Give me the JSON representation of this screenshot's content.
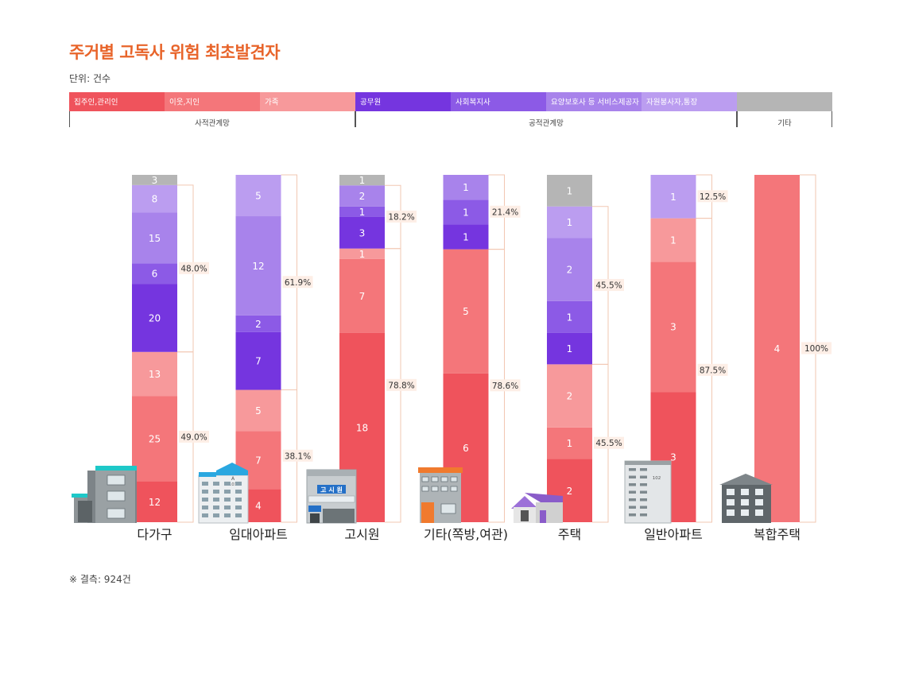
{
  "title": "주거별 고독사 위험 최초발견자",
  "unit": "단위: 건수",
  "footnote": "※ 결측: 924건",
  "legend": {
    "items": [
      {
        "label": "집주인,관리인",
        "color": "#ef535c"
      },
      {
        "label": "이웃,지인",
        "color": "#f4767a"
      },
      {
        "label": "가족",
        "color": "#f7999b"
      },
      {
        "label": "공무원",
        "color": "#7535df"
      },
      {
        "label": "사회복지사",
        "color": "#8c5ae6"
      },
      {
        "label": "요양보호사 등 서비스제공자",
        "color": "#a883eb"
      },
      {
        "label": "자원봉사자,통장",
        "color": "#bb9df0"
      },
      {
        "label": "",
        "color": "#b5b5b5"
      }
    ],
    "groups": [
      {
        "label": "사적관계망",
        "from": 0,
        "to": 3
      },
      {
        "label": "공적관계망",
        "from": 3,
        "to": 7
      },
      {
        "label": "기타",
        "from": 7,
        "to": 8
      }
    ]
  },
  "chart_data": {
    "type": "bar",
    "stacked": "percent",
    "categories": [
      "다가구",
      "임대아파트",
      "고시원",
      "기타(쪽방,여관)",
      "주택",
      "일반아파트",
      "복합주택"
    ],
    "series": [
      {
        "name": "집주인,관리인",
        "values": [
          12,
          4,
          18,
          6,
          2,
          3,
          0
        ]
      },
      {
        "name": "이웃,지인",
        "values": [
          25,
          7,
          7,
          5,
          1,
          3,
          4
        ]
      },
      {
        "name": "가족",
        "values": [
          13,
          5,
          1,
          0,
          2,
          1,
          0
        ]
      },
      {
        "name": "공무원",
        "values": [
          20,
          7,
          3,
          1,
          1,
          0,
          0
        ]
      },
      {
        "name": "사회복지사",
        "values": [
          6,
          2,
          1,
          1,
          1,
          0,
          0
        ]
      },
      {
        "name": "요양보호사 등 서비스제공자",
        "values": [
          15,
          12,
          2,
          1,
          2,
          0,
          0
        ]
      },
      {
        "name": "자원봉사자,통장",
        "values": [
          8,
          5,
          0,
          0,
          1,
          1,
          0
        ]
      },
      {
        "name": "",
        "values": [
          3,
          0,
          1,
          0,
          1,
          0,
          0
        ]
      }
    ],
    "brackets": [
      {
        "private": "49.0%",
        "public": "48.0%"
      },
      {
        "private": "38.1%",
        "public": "61.9%"
      },
      {
        "private": "78.8%",
        "public": "18.2%"
      },
      {
        "private": "78.6%",
        "public": "21.4%"
      },
      {
        "private": "45.5%",
        "public": "45.5%"
      },
      {
        "private": "87.5%",
        "public": "12.5%"
      },
      {
        "private": "100%",
        "public": ""
      }
    ]
  }
}
